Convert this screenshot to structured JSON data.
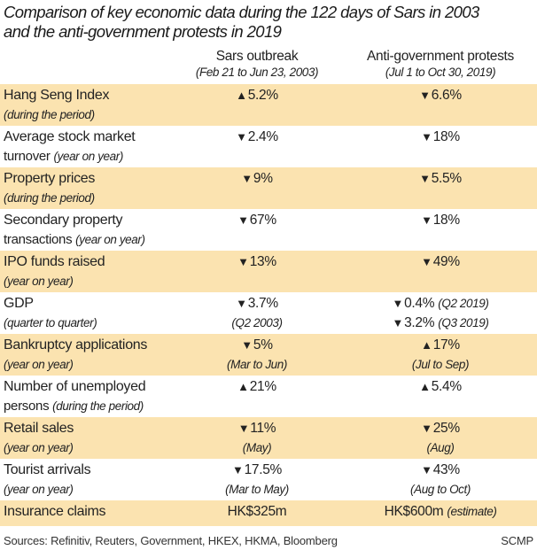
{
  "title": {
    "line1": "Comparison of key economic data during the 122 days of Sars in 2003",
    "line2": "and the anti-government protests in 2019"
  },
  "columns": [
    {
      "name": "Sars outbreak",
      "period": "(Feb 21 to Jun 23, 2003)"
    },
    {
      "name": "Anti-government protests",
      "period": "(Jul 1 to Oct 30, 2019)"
    }
  ],
  "colors": {
    "shade": "#fbe3b0",
    "text": "#222222"
  },
  "arrows": {
    "up": "▲",
    "down": "▼"
  },
  "rows": [
    {
      "label": {
        "line1": "Hang Seng Index",
        "line2": "",
        "note": "(during the period)"
      },
      "shaded": true,
      "cells": [
        [
          {
            "arrow": "up",
            "value": "5.2%",
            "note": ""
          }
        ],
        [
          {
            "arrow": "down",
            "value": "6.6%",
            "note": ""
          }
        ]
      ]
    },
    {
      "label": {
        "line1": "Average stock market",
        "line2": "turnover",
        "note": "(year on year)"
      },
      "shaded": false,
      "cells": [
        [
          {
            "arrow": "down",
            "value": "2.4%",
            "note": ""
          }
        ],
        [
          {
            "arrow": "down",
            "value": "18%",
            "note": ""
          }
        ]
      ]
    },
    {
      "label": {
        "line1": "Property prices",
        "line2": "",
        "note": "(during the period)"
      },
      "shaded": true,
      "cells": [
        [
          {
            "arrow": "down",
            "value": "9%",
            "note": ""
          }
        ],
        [
          {
            "arrow": "down",
            "value": "5.5%",
            "note": ""
          }
        ]
      ]
    },
    {
      "label": {
        "line1": "Secondary property",
        "line2": "transactions",
        "note": "(year on year)"
      },
      "shaded": false,
      "cells": [
        [
          {
            "arrow": "down",
            "value": "67%",
            "note": ""
          }
        ],
        [
          {
            "arrow": "down",
            "value": "18%",
            "note": ""
          }
        ]
      ]
    },
    {
      "label": {
        "line1": "IPO funds raised",
        "line2": "",
        "note": "(year on year)"
      },
      "shaded": true,
      "cells": [
        [
          {
            "arrow": "down",
            "value": "13%",
            "note": ""
          }
        ],
        [
          {
            "arrow": "down",
            "value": "49%",
            "note": ""
          }
        ]
      ]
    },
    {
      "label": {
        "line1": "GDP",
        "line2": "",
        "note": "(quarter to quarter)"
      },
      "shaded": false,
      "cells": [
        [
          {
            "arrow": "down",
            "value": "3.7%",
            "note": ""
          },
          {
            "arrow": "",
            "value": "",
            "note": "(Q2 2003)"
          }
        ],
        [
          {
            "arrow": "down",
            "value": "0.4%",
            "note": "(Q2 2019)"
          },
          {
            "arrow": "down",
            "value": "3.2%",
            "note": "(Q3 2019)"
          }
        ]
      ]
    },
    {
      "label": {
        "line1": "Bankruptcy applications",
        "line2": "",
        "note": "(year on year)"
      },
      "shaded": true,
      "cells": [
        [
          {
            "arrow": "down",
            "value": "5%",
            "note": ""
          },
          {
            "arrow": "",
            "value": "",
            "note": "(Mar to Jun)"
          }
        ],
        [
          {
            "arrow": "up",
            "value": "17%",
            "note": ""
          },
          {
            "arrow": "",
            "value": "",
            "note": "(Jul to Sep)"
          }
        ]
      ]
    },
    {
      "label": {
        "line1": "Number of unemployed",
        "line2": "persons",
        "note": "(during the period)"
      },
      "shaded": false,
      "cells": [
        [
          {
            "arrow": "up",
            "value": "21%",
            "note": ""
          }
        ],
        [
          {
            "arrow": "up",
            "value": "5.4%",
            "note": ""
          }
        ]
      ]
    },
    {
      "label": {
        "line1": "Retail sales",
        "line2": "",
        "note": "(year on year)"
      },
      "shaded": true,
      "cells": [
        [
          {
            "arrow": "down",
            "value": "11%",
            "note": ""
          },
          {
            "arrow": "",
            "value": "",
            "note": "(May)"
          }
        ],
        [
          {
            "arrow": "down",
            "value": "25%",
            "note": ""
          },
          {
            "arrow": "",
            "value": "",
            "note": "(Aug)"
          }
        ]
      ]
    },
    {
      "label": {
        "line1": "Tourist arrivals",
        "line2": "",
        "note": "(year on year)"
      },
      "shaded": false,
      "cells": [
        [
          {
            "arrow": "down",
            "value": "17.5%",
            "note": ""
          },
          {
            "arrow": "",
            "value": "",
            "note": "(Mar to May)"
          }
        ],
        [
          {
            "arrow": "down",
            "value": "43%",
            "note": ""
          },
          {
            "arrow": "",
            "value": "",
            "note": "(Aug to Oct)"
          }
        ]
      ]
    },
    {
      "label": {
        "line1": "Insurance claims",
        "line2": "",
        "note": ""
      },
      "shaded": true,
      "cells": [
        [
          {
            "arrow": "",
            "value": "HK$325m",
            "note": ""
          }
        ],
        [
          {
            "arrow": "",
            "value": "HK$600m",
            "note": "(estimate)"
          }
        ]
      ]
    }
  ],
  "footer": {
    "sources": "Sources: Refinitiv, Reuters, Government, HKEX, HKMA, Bloomberg",
    "credit": "SCMP"
  }
}
